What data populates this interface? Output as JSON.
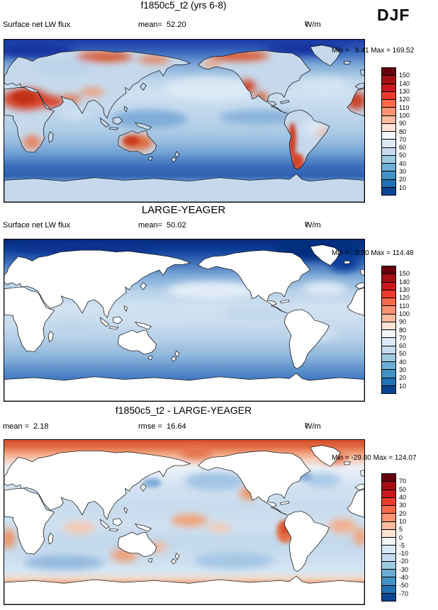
{
  "season_label": "DJF",
  "units_base": "W/m",
  "units_exp": "2",
  "panels": [
    {
      "title": "f1850c5_t2 (yrs 6-8)",
      "left_stat": "Surface net LW flux",
      "mid_stat": "mean=  52.20",
      "minmax": "Min =   8.41 Max = 169.52",
      "colorbar": {
        "labels": [
          "150",
          "140",
          "130",
          "120",
          "110",
          "100",
          "90",
          "80",
          "70",
          "60",
          "50",
          "40",
          "30",
          "20",
          "10"
        ],
        "colors": [
          "#67000d",
          "#a50f15",
          "#cb181d",
          "#ef3b2c",
          "#fb6a4a",
          "#fc9272",
          "#fcbba1",
          "#fee3d6",
          "#f3f7fc",
          "#dbe9f6",
          "#c6dbef",
          "#9ecae1",
          "#6baed6",
          "#4292c6",
          "#2171b5",
          "#084594"
        ]
      }
    },
    {
      "title": "LARGE-YEAGER",
      "left_stat": "Surface net LW flux",
      "mid_stat": "mean=  50.02",
      "minmax": "Min =   0.00 Max = 114.48",
      "colorbar": {
        "labels": [
          "150",
          "140",
          "130",
          "120",
          "110",
          "100",
          "90",
          "80",
          "70",
          "60",
          "50",
          "40",
          "30",
          "20",
          "10"
        ],
        "colors": [
          "#67000d",
          "#a50f15",
          "#cb181d",
          "#ef3b2c",
          "#fb6a4a",
          "#fc9272",
          "#fcbba1",
          "#fee3d6",
          "#f3f7fc",
          "#dbe9f6",
          "#c6dbef",
          "#9ecae1",
          "#6baed6",
          "#4292c6",
          "#2171b5",
          "#084594"
        ]
      }
    },
    {
      "title": "f1850c5_t2 - LARGE-YEAGER",
      "left_stat": "mean =  2.18",
      "mid_stat": "rmse =  16.64",
      "minmax": "Min = -29.80 Max = 124.07",
      "colorbar": {
        "labels": [
          "70",
          "50",
          "40",
          "30",
          "20",
          "10",
          "5",
          "0",
          "-5",
          "-10",
          "-20",
          "-30",
          "-40",
          "-50",
          "-70"
        ],
        "colors": [
          "#67000d",
          "#a50f15",
          "#cb181d",
          "#ef3b2c",
          "#fb6a4a",
          "#fc9272",
          "#fcbba1",
          "#fee3d6",
          "#f3f7fc",
          "#dbe9f6",
          "#c6dbef",
          "#9ecae1",
          "#6baed6",
          "#4292c6",
          "#2171b5",
          "#084594"
        ]
      }
    }
  ],
  "chart_data": {
    "type": "heatmap",
    "description": "Three-panel global lat-lon filled-contour maps of DJF Surface net LW flux: model climatology, LARGE-YEAGER observations, and their difference",
    "projection": "cylindrical equirectangular, longitude 0-360, latitude 90N-90S",
    "colormap": "blue-white-red",
    "season": "DJF",
    "panels": [
      {
        "name": "f1850c5_t2 (yrs 6-8)",
        "variable": "Surface net LW flux",
        "units": "W/m2",
        "mean": 52.2,
        "min": 8.41,
        "max": 169.52,
        "contour_levels": [
          10,
          20,
          30,
          40,
          50,
          60,
          70,
          80,
          90,
          100,
          110,
          120,
          130,
          140,
          150
        ]
      },
      {
        "name": "LARGE-YEAGER",
        "variable": "Surface net LW flux",
        "units": "W/m2",
        "mean": 50.02,
        "min": 0.0,
        "max": 114.48,
        "contour_levels": [
          10,
          20,
          30,
          40,
          50,
          60,
          70,
          80,
          90,
          100,
          110,
          120,
          130,
          140,
          150
        ],
        "note": "ocean-only dataset; land masked white"
      },
      {
        "name": "f1850c5_t2 - LARGE-YEAGER",
        "variable": "Surface net LW flux difference",
        "units": "W/m2",
        "mean": 2.18,
        "rmse": 16.64,
        "min": -29.8,
        "max": 124.07,
        "contour_levels": [
          -70,
          -50,
          -40,
          -30,
          -20,
          -10,
          -5,
          0,
          5,
          10,
          20,
          30,
          40,
          50,
          70
        ],
        "note": "difference shown over ocean only; land masked white"
      }
    ]
  }
}
